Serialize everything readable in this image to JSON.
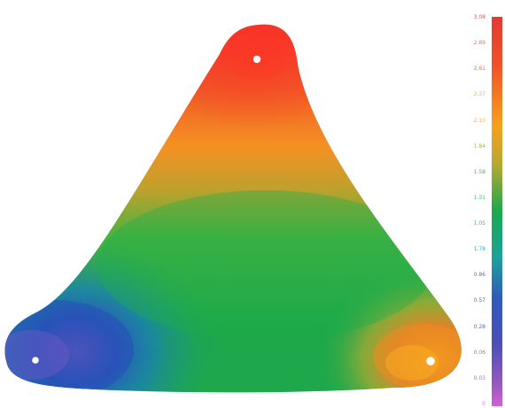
{
  "legend": {
    "labels": [
      "3.08",
      "2.89",
      "2.61",
      "2.37",
      "2.10",
      "1.84",
      "1.58",
      "1.31",
      "1.05",
      "1.78",
      "0.86",
      "0.57",
      "0.28",
      "0.06",
      "0.03",
      "0"
    ],
    "gradient_colors": [
      "#e53935",
      "#f05a28",
      "#f6a21d",
      "#9aa72c",
      "#23b14d",
      "#1fa0a4",
      "#2a5bbf",
      "#3a52b9",
      "#8e5bbd",
      "#cc5fcf"
    ]
  },
  "field": {
    "colors": {
      "red": "#ea3d2a",
      "orange": "#f48a20",
      "yellowOrange": "#e8a32a",
      "greenish": "#7bb02e",
      "green": "#1db04a",
      "blue": "#2f4fb9",
      "cyan": "#1a9bb5",
      "purple": "#7a5cc3"
    },
    "points": [
      "top-vertex-marker",
      "bottom-left-vertex-marker",
      "bottom-right-vertex-marker"
    ]
  }
}
